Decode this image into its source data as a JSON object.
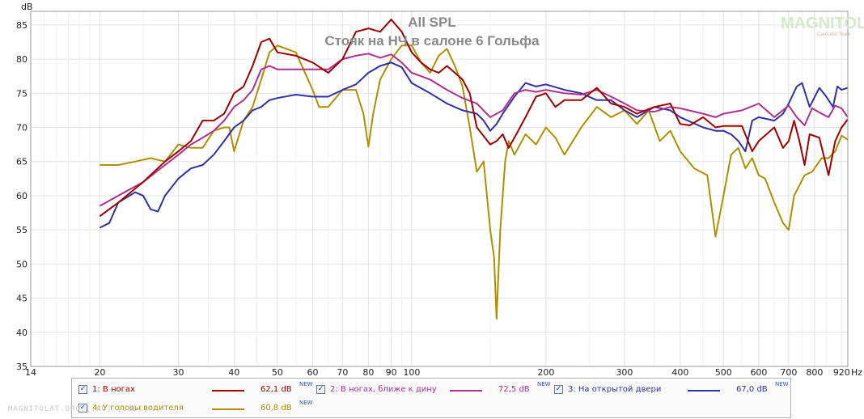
{
  "logo": {
    "text": "MAGNITOLA",
    "subtext": "CarAudio Team"
  },
  "watermark": "MAGNITOLAT.ORG  [.RU]  [.NET]",
  "chart_data": {
    "type": "line",
    "title": "All SPL",
    "subtitle": "Стояк на НЧ в салоне 6 Гольфа",
    "ylabel": "dB",
    "xlabel_unit": "Hz",
    "xscale": "log",
    "xlim": [
      14,
      950
    ],
    "ylim": [
      35,
      87
    ],
    "grid": true,
    "legend_position": "bottom",
    "y_ticks": [
      35,
      40,
      45,
      50,
      55,
      60,
      65,
      70,
      75,
      80,
      85
    ],
    "x_ticks": [
      {
        "v": 14,
        "label": "14"
      },
      {
        "v": 20,
        "label": "20"
      },
      {
        "v": 30,
        "label": "30"
      },
      {
        "v": 40,
        "label": "40"
      },
      {
        "v": 50,
        "label": "50"
      },
      {
        "v": 60,
        "label": "60"
      },
      {
        "v": 70,
        "label": "70"
      },
      {
        "v": 80,
        "label": "80"
      },
      {
        "v": 90,
        "label": "90"
      },
      {
        "v": 100,
        "label": "100"
      },
      {
        "v": 200,
        "label": "200"
      },
      {
        "v": 300,
        "label": "300"
      },
      {
        "v": 400,
        "label": "400"
      },
      {
        "v": 500,
        "label": "500"
      },
      {
        "v": 600,
        "label": "600"
      },
      {
        "v": 700,
        "label": "700"
      },
      {
        "v": 800,
        "label": "800"
      },
      {
        "v": 920,
        "label": "920"
      }
    ],
    "series": [
      {
        "name": "1: В ногах",
        "color": "#a00000",
        "level": "62,1 dB",
        "checked": true,
        "points": [
          [
            20,
            57
          ],
          [
            22,
            59
          ],
          [
            25,
            62
          ],
          [
            28,
            65
          ],
          [
            30,
            66.5
          ],
          [
            32,
            68
          ],
          [
            34,
            71
          ],
          [
            36,
            71
          ],
          [
            38,
            72
          ],
          [
            40,
            75
          ],
          [
            42,
            76
          ],
          [
            44,
            79
          ],
          [
            46,
            82.5
          ],
          [
            48,
            83
          ],
          [
            50,
            81
          ],
          [
            55,
            80.5
          ],
          [
            60,
            79.5
          ],
          [
            65,
            78
          ],
          [
            70,
            80
          ],
          [
            75,
            84
          ],
          [
            80,
            84.5
          ],
          [
            85,
            84
          ],
          [
            90,
            85.8
          ],
          [
            95,
            84
          ],
          [
            100,
            81
          ],
          [
            105,
            79.5
          ],
          [
            110,
            78.5
          ],
          [
            115,
            78
          ],
          [
            120,
            79
          ],
          [
            125,
            78
          ],
          [
            130,
            77
          ],
          [
            135,
            75
          ],
          [
            140,
            70
          ],
          [
            150,
            67.5
          ],
          [
            155,
            68
          ],
          [
            160,
            69
          ],
          [
            165,
            67
          ],
          [
            170,
            68.5
          ],
          [
            180,
            71.5
          ],
          [
            190,
            74.5
          ],
          [
            200,
            75
          ],
          [
            210,
            73
          ],
          [
            220,
            74
          ],
          [
            240,
            74
          ],
          [
            260,
            75.8
          ],
          [
            280,
            73.5
          ],
          [
            300,
            73
          ],
          [
            320,
            72
          ],
          [
            350,
            73
          ],
          [
            380,
            73.5
          ],
          [
            400,
            70.5
          ],
          [
            420,
            70.3
          ],
          [
            450,
            71.5
          ],
          [
            480,
            70
          ],
          [
            500,
            70.2
          ],
          [
            550,
            70.2
          ],
          [
            580,
            66.5
          ],
          [
            600,
            68
          ],
          [
            650,
            70
          ],
          [
            680,
            67
          ],
          [
            700,
            68
          ],
          [
            720,
            71
          ],
          [
            740,
            68
          ],
          [
            760,
            64.5
          ],
          [
            780,
            69
          ],
          [
            820,
            68.5
          ],
          [
            860,
            63
          ],
          [
            890,
            68
          ],
          [
            920,
            70
          ],
          [
            950,
            71.2
          ]
        ]
      },
      {
        "name": "2: В ногах, ближе к дину",
        "color": "#b03090",
        "level": "72,5 dB",
        "checked": true,
        "points": [
          [
            20,
            58.5
          ],
          [
            22,
            60
          ],
          [
            25,
            62
          ],
          [
            28,
            64.5
          ],
          [
            30,
            66
          ],
          [
            32,
            67.5
          ],
          [
            34,
            68.5
          ],
          [
            36,
            69.5
          ],
          [
            38,
            71
          ],
          [
            40,
            73
          ],
          [
            42,
            74
          ],
          [
            44,
            75.5
          ],
          [
            46,
            78.5
          ],
          [
            48,
            79
          ],
          [
            50,
            78.5
          ],
          [
            55,
            78.5
          ],
          [
            60,
            78.5
          ],
          [
            65,
            78.5
          ],
          [
            70,
            80
          ],
          [
            75,
            80.5
          ],
          [
            80,
            80.8
          ],
          [
            85,
            80.2
          ],
          [
            90,
            80.7
          ],
          [
            95,
            79.5
          ],
          [
            100,
            78
          ],
          [
            105,
            77.5
          ],
          [
            110,
            77
          ],
          [
            120,
            75.5
          ],
          [
            130,
            74.3
          ],
          [
            140,
            73.5
          ],
          [
            150,
            71.5
          ],
          [
            160,
            72.5
          ],
          [
            170,
            75
          ],
          [
            180,
            75.5
          ],
          [
            190,
            75.2
          ],
          [
            200,
            75.5
          ],
          [
            220,
            75
          ],
          [
            240,
            74.8
          ],
          [
            260,
            75.5
          ],
          [
            280,
            74.5
          ],
          [
            300,
            73.5
          ],
          [
            320,
            72.5
          ],
          [
            350,
            72.3
          ],
          [
            380,
            73
          ],
          [
            400,
            72.8
          ],
          [
            450,
            72
          ],
          [
            480,
            71.5
          ],
          [
            500,
            72
          ],
          [
            550,
            72.5
          ],
          [
            600,
            73.5
          ],
          [
            650,
            71.5
          ],
          [
            700,
            73.2
          ],
          [
            730,
            71.5
          ],
          [
            760,
            70.3
          ],
          [
            790,
            72.8
          ],
          [
            830,
            72
          ],
          [
            860,
            71.5
          ],
          [
            890,
            73.2
          ],
          [
            920,
            72.8
          ],
          [
            950,
            71.5
          ]
        ]
      },
      {
        "name": "3: На открытой двери",
        "color": "#3030a8",
        "level": "67,0 dB",
        "checked": true,
        "points": [
          [
            20,
            55.3
          ],
          [
            21,
            56
          ],
          [
            22,
            59
          ],
          [
            24,
            60.5
          ],
          [
            25,
            60
          ],
          [
            26,
            58
          ],
          [
            27,
            57.7
          ],
          [
            28,
            60
          ],
          [
            30,
            62.5
          ],
          [
            32,
            64
          ],
          [
            34,
            64.5
          ],
          [
            36,
            66
          ],
          [
            38,
            68
          ],
          [
            40,
            70
          ],
          [
            42,
            71
          ],
          [
            44,
            72.5
          ],
          [
            46,
            73
          ],
          [
            48,
            74
          ],
          [
            50,
            74.3
          ],
          [
            55,
            74.8
          ],
          [
            60,
            74.5
          ],
          [
            65,
            74.5
          ],
          [
            70,
            75.5
          ],
          [
            75,
            76.3
          ],
          [
            80,
            78
          ],
          [
            85,
            79
          ],
          [
            90,
            79.5
          ],
          [
            95,
            78.8
          ],
          [
            100,
            76.5
          ],
          [
            110,
            75
          ],
          [
            120,
            73.5
          ],
          [
            130,
            72.5
          ],
          [
            140,
            72
          ],
          [
            145,
            71
          ],
          [
            150,
            69.5
          ],
          [
            155,
            70.5
          ],
          [
            160,
            72
          ],
          [
            170,
            74.5
          ],
          [
            180,
            76.5
          ],
          [
            190,
            76
          ],
          [
            200,
            76.3
          ],
          [
            220,
            75.5
          ],
          [
            240,
            75
          ],
          [
            260,
            74
          ],
          [
            280,
            74
          ],
          [
            300,
            72.5
          ],
          [
            320,
            71.5
          ],
          [
            350,
            73
          ],
          [
            380,
            72.5
          ],
          [
            400,
            71.5
          ],
          [
            450,
            70
          ],
          [
            480,
            69.5
          ],
          [
            500,
            69.5
          ],
          [
            520,
            69
          ],
          [
            540,
            68
          ],
          [
            560,
            66.5
          ],
          [
            580,
            71
          ],
          [
            600,
            71.5
          ],
          [
            650,
            71
          ],
          [
            680,
            72
          ],
          [
            700,
            73.5
          ],
          [
            730,
            76
          ],
          [
            750,
            76.5
          ],
          [
            780,
            73
          ],
          [
            820,
            75.8
          ],
          [
            850,
            74.5
          ],
          [
            880,
            73
          ],
          [
            900,
            76
          ],
          [
            920,
            75.5
          ],
          [
            950,
            75.8
          ]
        ]
      },
      {
        "name": "4: У головы водителя",
        "color": "#b09000",
        "level": "60,8 dB",
        "checked": true,
        "points": [
          [
            20,
            64.5
          ],
          [
            22,
            64.5
          ],
          [
            24,
            65
          ],
          [
            26,
            65.5
          ],
          [
            28,
            65
          ],
          [
            30,
            67.5
          ],
          [
            32,
            67
          ],
          [
            34,
            67
          ],
          [
            36,
            69.5
          ],
          [
            38,
            70
          ],
          [
            39,
            70
          ],
          [
            40,
            66.5
          ],
          [
            42,
            71
          ],
          [
            44,
            73
          ],
          [
            46,
            77
          ],
          [
            48,
            81
          ],
          [
            50,
            82
          ],
          [
            55,
            81
          ],
          [
            60,
            75.5
          ],
          [
            62,
            73
          ],
          [
            65,
            73
          ],
          [
            70,
            75.5
          ],
          [
            75,
            75.5
          ],
          [
            78,
            72
          ],
          [
            80,
            67.2
          ],
          [
            82,
            72
          ],
          [
            85,
            77
          ],
          [
            90,
            80
          ],
          [
            95,
            82
          ],
          [
            100,
            82
          ],
          [
            105,
            79.5
          ],
          [
            110,
            78
          ],
          [
            115,
            80.5
          ],
          [
            120,
            81.5
          ],
          [
            125,
            79
          ],
          [
            130,
            76
          ],
          [
            135,
            70
          ],
          [
            140,
            63.5
          ],
          [
            145,
            65
          ],
          [
            150,
            55
          ],
          [
            153,
            51
          ],
          [
            155,
            42
          ],
          [
            158,
            55
          ],
          [
            162,
            65
          ],
          [
            165,
            68
          ],
          [
            170,
            66
          ],
          [
            180,
            69
          ],
          [
            190,
            67.5
          ],
          [
            200,
            70
          ],
          [
            210,
            68.5
          ],
          [
            220,
            66
          ],
          [
            240,
            70
          ],
          [
            260,
            73
          ],
          [
            280,
            71.5
          ],
          [
            300,
            72.5
          ],
          [
            320,
            70.5
          ],
          [
            340,
            72.5
          ],
          [
            360,
            68
          ],
          [
            380,
            69.5
          ],
          [
            400,
            66.5
          ],
          [
            430,
            64
          ],
          [
            460,
            63
          ],
          [
            480,
            54
          ],
          [
            500,
            60
          ],
          [
            520,
            66
          ],
          [
            540,
            67
          ],
          [
            560,
            64
          ],
          [
            580,
            65.5
          ],
          [
            600,
            63
          ],
          [
            620,
            62.5
          ],
          [
            650,
            59
          ],
          [
            680,
            56
          ],
          [
            700,
            55
          ],
          [
            720,
            60
          ],
          [
            760,
            63
          ],
          [
            790,
            63.5
          ],
          [
            830,
            65.5
          ],
          [
            860,
            65.5
          ],
          [
            890,
            66.5
          ],
          [
            920,
            68.8
          ],
          [
            950,
            68.2
          ]
        ]
      }
    ]
  }
}
